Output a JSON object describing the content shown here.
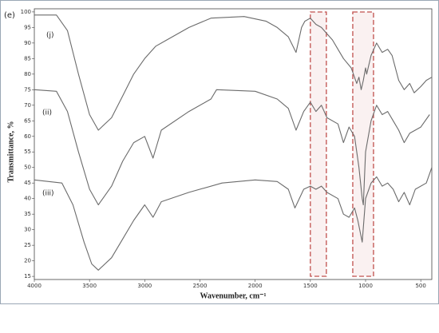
{
  "chart_data": {
    "type": "line",
    "title": "(e)",
    "x_label": "Wavenumber, cm⁻¹",
    "y_label": "Transmittance, %",
    "xlim": [
      4000,
      400
    ],
    "ylim": [
      14,
      101
    ],
    "xticks": [
      4000,
      3500,
      3000,
      2500,
      2000,
      1500,
      1000,
      500
    ],
    "yticks": [
      15,
      20,
      25,
      30,
      35,
      40,
      45,
      50,
      55,
      60,
      65,
      70,
      75,
      80,
      85,
      90,
      95,
      100
    ],
    "highlight_regions": [
      [
        1500,
        1355
      ],
      [
        1116,
        928
      ]
    ],
    "highlight_color": "#c0504d",
    "series": [
      {
        "name": "(j)",
        "color": "#6b6b6b",
        "x": [
          4000,
          3800,
          3700,
          3600,
          3500,
          3420,
          3300,
          3200,
          3100,
          3000,
          2900,
          2800,
          2600,
          2400,
          2100,
          1900,
          1800,
          1700,
          1630,
          1580,
          1550,
          1500,
          1450,
          1400,
          1350,
          1300,
          1250,
          1200,
          1130,
          1080,
          1060,
          1040,
          1020,
          1000,
          990,
          950,
          900,
          850,
          800,
          760,
          700,
          650,
          600,
          560,
          500,
          450,
          400
        ],
        "values": [
          99,
          99,
          94,
          80,
          67,
          62,
          66,
          73,
          80,
          85,
          89,
          91,
          95,
          98,
          98.5,
          97,
          95,
          92,
          87,
          95,
          97,
          98,
          96,
          95,
          93,
          91,
          88,
          85,
          82,
          77,
          79,
          75,
          78,
          82,
          80,
          86,
          90,
          87,
          88,
          86,
          78,
          75,
          77,
          74,
          76,
          78,
          79
        ]
      },
      {
        "name": "(ii)",
        "color": "#6b6b6b",
        "x": [
          4000,
          3800,
          3700,
          3600,
          3500,
          3420,
          3300,
          3200,
          3100,
          3000,
          2925,
          2850,
          2600,
          2400,
          2350,
          2000,
          1800,
          1700,
          1630,
          1560,
          1500,
          1450,
          1400,
          1350,
          1250,
          1200,
          1150,
          1100,
          1060,
          1030,
          1020,
          1000,
          950,
          900,
          850,
          800,
          750,
          700,
          650,
          600,
          500,
          420
        ],
        "values": [
          75,
          74.5,
          68,
          55,
          43,
          38,
          44,
          52,
          58,
          60,
          53,
          62,
          68,
          72,
          75,
          74.5,
          72,
          69,
          62,
          68,
          71,
          68,
          70,
          66,
          64,
          58,
          63,
          60,
          50,
          40,
          38,
          55,
          65,
          70,
          67,
          68,
          65,
          62,
          58,
          61,
          63,
          67
        ]
      },
      {
        "name": "(iii)",
        "color": "#6b6b6b",
        "x": [
          4000,
          3750,
          3650,
          3550,
          3480,
          3420,
          3300,
          3200,
          3100,
          3000,
          2925,
          2850,
          2600,
          2300,
          2000,
          1800,
          1700,
          1640,
          1560,
          1500,
          1450,
          1400,
          1350,
          1250,
          1200,
          1150,
          1100,
          1070,
          1030,
          1000,
          950,
          900,
          850,
          800,
          750,
          700,
          650,
          600,
          550,
          450,
          400
        ],
        "values": [
          46,
          45,
          38,
          26,
          19,
          17,
          21,
          27,
          33,
          38,
          34,
          39,
          42,
          45,
          46,
          45.5,
          43,
          37,
          43,
          44,
          43,
          44,
          42,
          40,
          35,
          34,
          37,
          33,
          26,
          40,
          45,
          47,
          44,
          45,
          43,
          39,
          42,
          38,
          43,
          45,
          50
        ]
      }
    ]
  }
}
